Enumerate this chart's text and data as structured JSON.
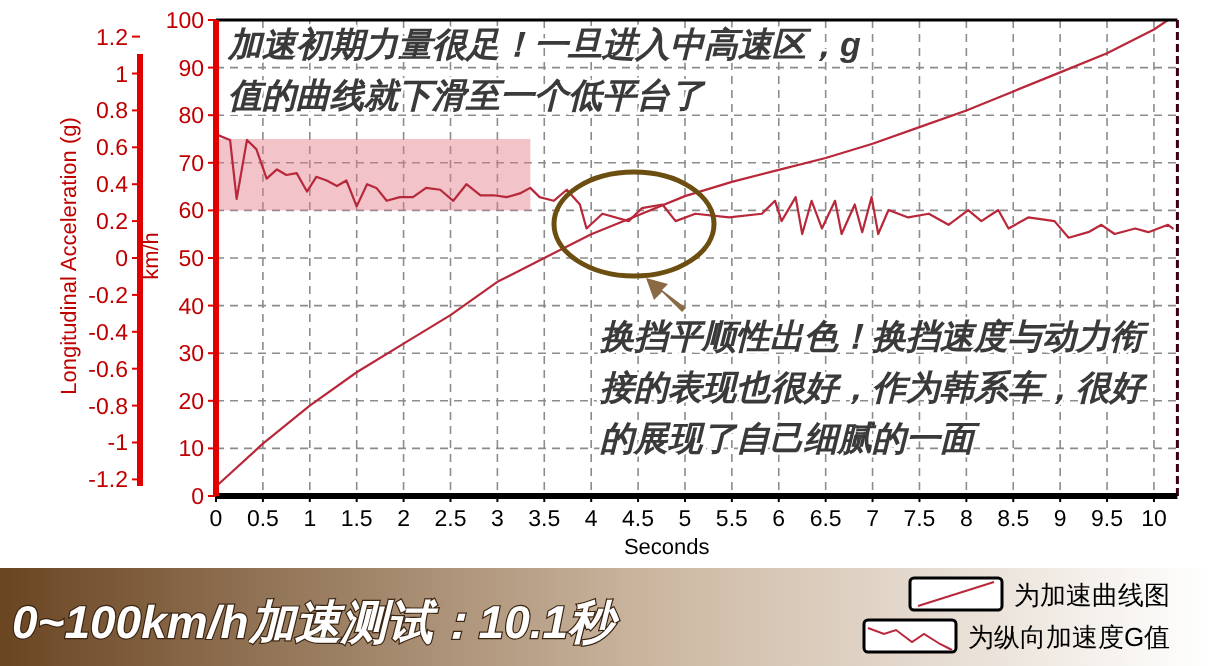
{
  "chart_data": {
    "type": "line",
    "title": "0~100km/h加速测试：10.1秒",
    "xlabel": "Seconds",
    "ylabel": "Longitudinal Acceleration (g)",
    "y2label": "km/h",
    "xlim": [
      0,
      10.25
    ],
    "xticks": [
      0,
      0.5,
      1,
      1.5,
      2,
      2.5,
      3,
      3.5,
      4,
      4.5,
      5,
      5.5,
      6,
      6.5,
      7,
      7.5,
      8,
      8.5,
      9,
      9.5,
      10
    ],
    "ylim": [
      -1.29,
      1.29
    ],
    "yticks": [
      -1.2,
      -1,
      -0.8,
      -0.6,
      -0.4,
      -0.2,
      0,
      0.2,
      0.4,
      0.6,
      0.8,
      1,
      1.2
    ],
    "y2lim": [
      0,
      100
    ],
    "y2ticks": [
      0,
      10,
      20,
      30,
      40,
      50,
      60,
      70,
      80,
      90,
      100
    ],
    "grid": true,
    "legend": "bottom right",
    "bands": [
      {
        "axis": "y2",
        "from": 60,
        "to": 75,
        "color": "#e27d8a"
      }
    ],
    "series": [
      {
        "name": "为加速曲线图",
        "color": "#b8283a",
        "axis": "y2",
        "x": [
          0,
          0.5,
          1,
          1.5,
          2,
          2.5,
          3,
          3.5,
          4,
          4.5,
          5,
          5.5,
          6,
          6.5,
          7,
          7.5,
          8,
          8.5,
          9,
          9.5,
          10,
          10.15
        ],
        "values": [
          2,
          11,
          19,
          26,
          32,
          38,
          45,
          50,
          55,
          59,
          63,
          66,
          68.5,
          71,
          74,
          77.5,
          81,
          85,
          89,
          93,
          98,
          100
        ]
      },
      {
        "name": "为纵向加速度G值",
        "color": "#b8283a",
        "axis": "y",
        "x": [
          0,
          0.15,
          0.22,
          0.33,
          0.43,
          0.54,
          0.65,
          0.75,
          0.86,
          0.97,
          1.07,
          1.18,
          1.29,
          1.39,
          1.5,
          1.61,
          1.71,
          1.82,
          1.96,
          2.1,
          2.24,
          2.39,
          2.53,
          2.67,
          2.82,
          2.96,
          3.1,
          3.24,
          3.35,
          3.45,
          3.6,
          3.74,
          3.88,
          3.95,
          4.12,
          4.4,
          4.54,
          4.76,
          4.9,
          5.11,
          5.47,
          5.82,
          5.96,
          6.03,
          6.18,
          6.25,
          6.35,
          6.46,
          6.6,
          6.67,
          6.81,
          6.89,
          6.99,
          7.06,
          7.17,
          7.38,
          7.6,
          7.81,
          8.02,
          8.16,
          8.34,
          8.45,
          8.66,
          8.94,
          9.09,
          9.3,
          9.44,
          9.58,
          9.8,
          9.94,
          10.15,
          10.2
        ],
        "values": [
          0.67,
          0.64,
          0.32,
          0.64,
          0.59,
          0.43,
          0.48,
          0.45,
          0.46,
          0.36,
          0.44,
          0.42,
          0.39,
          0.42,
          0.28,
          0.4,
          0.38,
          0.31,
          0.33,
          0.33,
          0.38,
          0.37,
          0.31,
          0.4,
          0.34,
          0.34,
          0.33,
          0.35,
          0.38,
          0.33,
          0.31,
          0.37,
          0.29,
          0.16,
          0.24,
          0.2,
          0.27,
          0.29,
          0.2,
          0.24,
          0.22,
          0.24,
          0.31,
          0.2,
          0.33,
          0.13,
          0.31,
          0.16,
          0.31,
          0.13,
          0.29,
          0.14,
          0.33,
          0.13,
          0.26,
          0.22,
          0.24,
          0.18,
          0.26,
          0.2,
          0.26,
          0.16,
          0.22,
          0.2,
          0.11,
          0.14,
          0.18,
          0.13,
          0.16,
          0.14,
          0.18,
          0.16
        ]
      }
    ],
    "annotations": [
      "加速初期力量很足！一旦进入中高速区，g值的曲线就下滑至一个低平台了",
      "换挡平顺性出色！换挡速度与动力衔接的表现也很好，作为韩系车，很好的展现了自己细腻的一面"
    ]
  }
}
